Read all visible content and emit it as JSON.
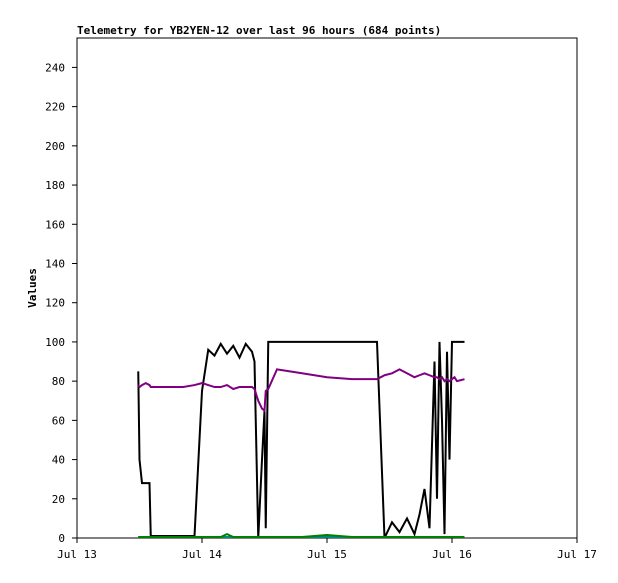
{
  "chart_data": {
    "type": "line",
    "title": "Telemetry for YB2YEN-12 over last 96 hours (684 points)",
    "y_label": "Values",
    "x": [
      0.49,
      0.5,
      0.52,
      0.55,
      0.58,
      0.59,
      0.7,
      0.85,
      0.94,
      1.0,
      1.05,
      1.1,
      1.15,
      1.2,
      1.25,
      1.3,
      1.35,
      1.4,
      1.42,
      1.45,
      1.48,
      1.5,
      1.51,
      1.53,
      1.6,
      1.8,
      2.0,
      2.2,
      2.4,
      2.46,
      2.52,
      2.58,
      2.64,
      2.7,
      2.74,
      2.78,
      2.82,
      2.86,
      2.88,
      2.9,
      2.92,
      2.94,
      2.96,
      2.98,
      3.0,
      3.02,
      3.04,
      3.1
    ],
    "series": [
      {
        "color": "#000000",
        "values": [
          85,
          40,
          28,
          28,
          28,
          1,
          1,
          1,
          1,
          75,
          96,
          93,
          99,
          94,
          98,
          92,
          99,
          95,
          90,
          0,
          40,
          65,
          5,
          100,
          100,
          100,
          100,
          100,
          100,
          0,
          8,
          3,
          10,
          2,
          12,
          25,
          5,
          90,
          20,
          100,
          60,
          2,
          95,
          40,
          100,
          100,
          100,
          100
        ]
      },
      {
        "color": "#800080",
        "values": [
          78,
          77,
          78,
          79,
          78,
          77,
          77,
          77,
          78,
          79,
          78,
          77,
          77,
          78,
          76,
          77,
          77,
          77,
          76,
          70,
          66,
          65,
          75,
          76,
          86,
          84,
          82,
          81,
          81,
          83,
          84,
          86,
          84,
          82,
          83,
          84,
          83,
          82,
          82,
          81,
          82,
          80,
          81,
          80,
          81,
          82,
          80,
          81
        ]
      },
      {
        "color": "#008b8b",
        "values": [
          0.5,
          0.5,
          0.5,
          0.5,
          0.5,
          0.5,
          0.5,
          0.5,
          0.5,
          0.5,
          0.5,
          0.5,
          0.5,
          0.5,
          0.5,
          0.5,
          0.5,
          0.5,
          0.5,
          0.5,
          0.5,
          0.5,
          0.5,
          0.5,
          0.5,
          0.5,
          0.5,
          0.5,
          0.5,
          0.5,
          0.5,
          0.5,
          0.5,
          0.5,
          0.5,
          0.5,
          0.5,
          0.5,
          0.5,
          0.5,
          0.5,
          0.5,
          0.5,
          0.5,
          0.5,
          0.5,
          0.5,
          0.5
        ]
      },
      {
        "color": "#008000",
        "values": [
          0.5,
          0.5,
          0.5,
          0.5,
          0.5,
          0.5,
          0.5,
          0.5,
          0.5,
          0.5,
          0.5,
          0.5,
          0.5,
          2,
          0.5,
          0.5,
          0.5,
          0.5,
          0.5,
          0.5,
          0.5,
          0.5,
          0.5,
          0.5,
          0.5,
          0.5,
          1.5,
          0.5,
          0.5,
          0.5,
          0.5,
          0.5,
          0.5,
          0.5,
          0.5,
          0.5,
          0.5,
          0.5,
          0.5,
          0.5,
          0.5,
          0.5,
          0.5,
          0.5,
          0.5,
          0.5,
          0.5,
          0.5
        ]
      }
    ],
    "xlim": [
      0,
      4
    ],
    "xticks": [
      {
        "value": 0,
        "label": "Jul 13"
      },
      {
        "value": 1,
        "label": "Jul 14"
      },
      {
        "value": 2,
        "label": "Jul 15"
      },
      {
        "value": 3,
        "label": "Jul 16"
      },
      {
        "value": 4,
        "label": "Jul 17"
      }
    ],
    "ylim": [
      0,
      255
    ],
    "yticks": [
      0,
      20,
      40,
      60,
      80,
      100,
      120,
      140,
      160,
      180,
      200,
      220,
      240
    ]
  }
}
